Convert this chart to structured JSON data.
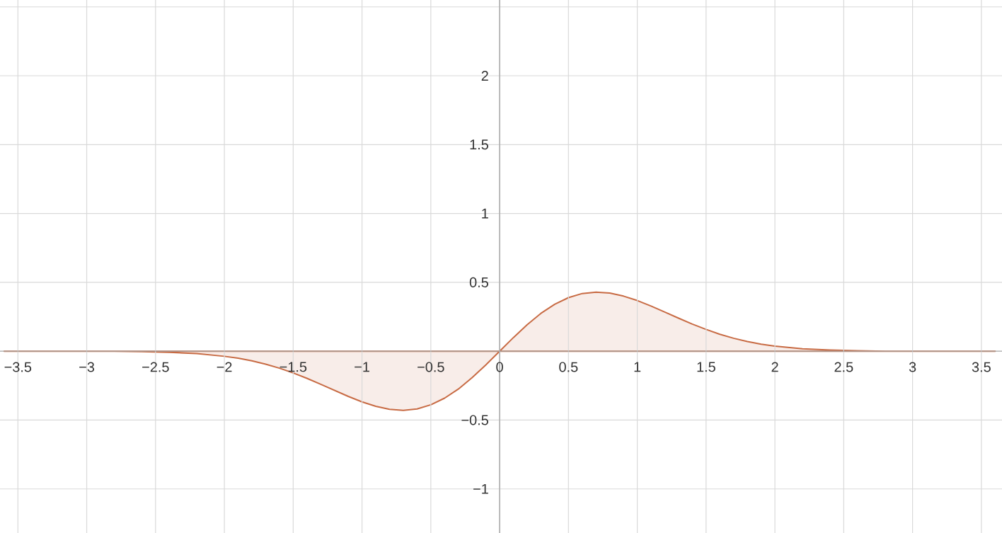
{
  "chart_data": {
    "type": "area",
    "grid": true,
    "marker": "none",
    "line_style": "solid",
    "xlim": [
      -3.63,
      3.65
    ],
    "ylim": [
      -1.32,
      2.55
    ],
    "xticks": [
      {
        "value": -3.5,
        "label": "−3.5"
      },
      {
        "value": -3,
        "label": "−3"
      },
      {
        "value": -2.5,
        "label": "−2.5"
      },
      {
        "value": -2,
        "label": "−2"
      },
      {
        "value": -1.5,
        "label": "−1.5"
      },
      {
        "value": -1,
        "label": "−1"
      },
      {
        "value": -0.5,
        "label": "−0.5"
      },
      0,
      0.5,
      1,
      1.5,
      2,
      2.5,
      3,
      3.5
    ],
    "yticks": [
      {
        "value": -1,
        "label": "−1"
      },
      {
        "value": -0.5,
        "label": "−0.5"
      },
      {
        "value": 0,
        "label": null
      },
      0.5,
      1,
      1.5,
      2,
      {
        "value": 2.5,
        "label": null
      }
    ],
    "series": [
      {
        "color": "#c86b44",
        "x": [
          -3.6,
          -3.0,
          -2.8,
          -2.6,
          -2.4,
          -2.2,
          -2.0,
          -1.9,
          -1.8,
          -1.7,
          -1.6,
          -1.5,
          -1.4,
          -1.3,
          -1.2,
          -1.1,
          -1.0,
          -0.9,
          -0.8,
          -0.7,
          -0.6,
          -0.5,
          -0.4,
          -0.3,
          -0.2,
          -0.1,
          0,
          0.1,
          0.2,
          0.3,
          0.4,
          0.5,
          0.6,
          0.7,
          0.8,
          0.9,
          1.0,
          1.1,
          1.2,
          1.3,
          1.4,
          1.5,
          1.6,
          1.7,
          1.8,
          1.9,
          2.0,
          2.2,
          2.4,
          2.6,
          2.8,
          3.0,
          3.6
        ],
        "values": [
          0,
          0,
          0,
          -0.003,
          -0.008,
          -0.017,
          -0.037,
          -0.051,
          -0.07,
          -0.094,
          -0.123,
          -0.158,
          -0.197,
          -0.24,
          -0.284,
          -0.328,
          -0.368,
          -0.4,
          -0.422,
          -0.429,
          -0.419,
          -0.389,
          -0.341,
          -0.275,
          -0.192,
          -0.099,
          0,
          0.099,
          0.192,
          0.275,
          0.341,
          0.389,
          0.419,
          0.429,
          0.422,
          0.4,
          0.368,
          0.328,
          0.284,
          0.24,
          0.197,
          0.158,
          0.123,
          0.094,
          0.07,
          0.051,
          0.037,
          0.017,
          0.008,
          0.003,
          0,
          0,
          0
        ]
      }
    ]
  }
}
